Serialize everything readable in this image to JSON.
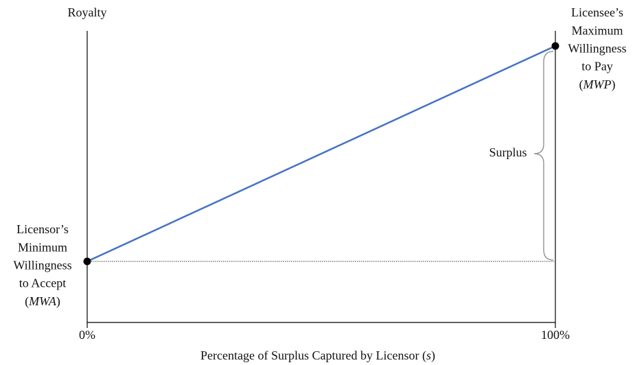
{
  "y_axis": {
    "label": "Royalty"
  },
  "x_axis": {
    "title": [
      {
        "text": "Percentage of Surplus Captured by Licensor (",
        "italic": false
      },
      {
        "text": "s",
        "italic": true
      },
      {
        "text": ")",
        "italic": false
      }
    ],
    "ticks": [
      "0%",
      "100%"
    ]
  },
  "right_label": {
    "lines": [
      "Licensee’s",
      "Maximum",
      "Willingness",
      "to Pay",
      [
        {
          "text": "(",
          "italic": false
        },
        {
          "text": "MWP",
          "italic": true
        },
        {
          "text": ")",
          "italic": false
        }
      ]
    ]
  },
  "left_label": {
    "lines": [
      "Licensor’s",
      "Minimum",
      "Willingness",
      "to Accept",
      [
        {
          "text": "(",
          "italic": false
        },
        {
          "text": "MWA",
          "italic": true
        },
        {
          "text": ")",
          "italic": false
        }
      ]
    ]
  },
  "brace_label": "Surplus"
}
